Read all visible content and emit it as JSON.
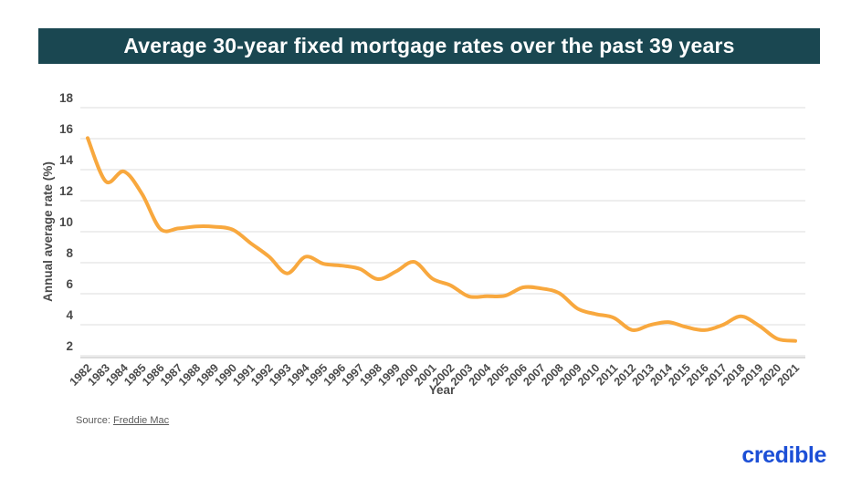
{
  "title_bar": {
    "title": "Average 30-year fixed mortgage rates over the past 39 years"
  },
  "chart_data": {
    "type": "line",
    "x": [
      1982,
      1983,
      1984,
      1985,
      1986,
      1987,
      1988,
      1989,
      1990,
      1991,
      1992,
      1993,
      1994,
      1995,
      1996,
      1997,
      1998,
      1999,
      2000,
      2001,
      2002,
      2003,
      2004,
      2005,
      2006,
      2007,
      2008,
      2009,
      2010,
      2011,
      2012,
      2013,
      2014,
      2015,
      2016,
      2017,
      2018,
      2019,
      2020,
      2021
    ],
    "series": [
      {
        "name": "Average 30-year fixed mortgage rate",
        "values": [
          16.04,
          13.24,
          13.88,
          12.43,
          10.19,
          10.21,
          10.34,
          10.32,
          10.13,
          9.25,
          8.39,
          7.31,
          8.38,
          7.93,
          7.81,
          7.6,
          6.94,
          7.44,
          8.05,
          6.97,
          6.54,
          5.83,
          5.84,
          5.87,
          6.41,
          6.34,
          6.03,
          5.04,
          4.69,
          4.45,
          3.66,
          3.98,
          4.17,
          3.85,
          3.65,
          3.99,
          4.54,
          3.94,
          3.1,
          2.96
        ]
      }
    ],
    "xlabel": "Year",
    "ylabel": "Annual average rate (%)",
    "ylim": [
      2,
      18
    ],
    "yticks": [
      2,
      4,
      6,
      8,
      10,
      12,
      14,
      16,
      18
    ],
    "grid": true,
    "legend": false,
    "line_color": "#F8A83E"
  },
  "source": {
    "prefix": "Source: ",
    "link_text": "Freddie Mac"
  },
  "branding": {
    "logo_text": "credible",
    "logo_color": "#1C4FD6"
  },
  "colors": {
    "title_bar_bg": "#1A4751",
    "title_text": "#FFFFFF",
    "axis_text": "#4A4A4A",
    "gridline": "#DCDCDC",
    "axis_line": "#C8C8C8",
    "source_text": "#5A5A5A"
  }
}
